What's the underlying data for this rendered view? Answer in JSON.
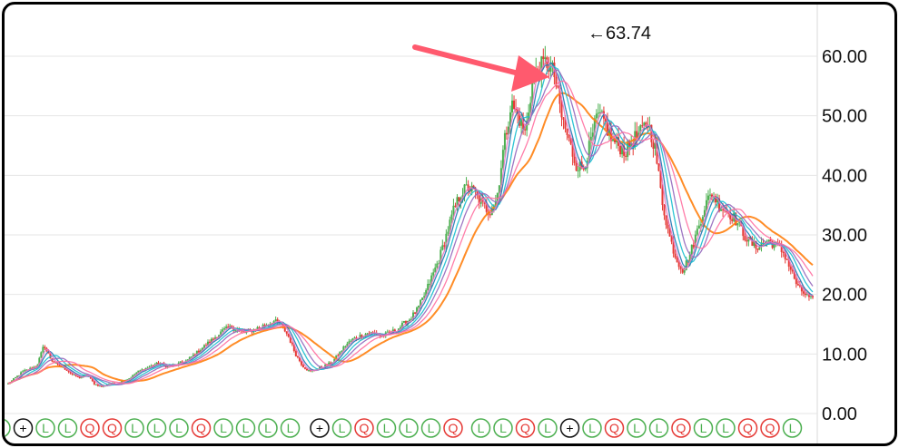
{
  "chart_data": {
    "type": "candlestick",
    "title": "",
    "xlabel": "",
    "ylabel": "",
    "ylim": [
      0,
      67
    ],
    "y_ticks": [
      "0.00",
      "10.00",
      "20.00",
      "30.00",
      "40.00",
      "50.00",
      "60.00"
    ],
    "y_axis_position": "right",
    "grid": true,
    "peak_label": "63.74",
    "peak_arrow_glyph": "←",
    "price_path": [
      5,
      6,
      7,
      7.5,
      8,
      11.5,
      9,
      8,
      7.5,
      6.5,
      6,
      6.5,
      5,
      4.5,
      5,
      5,
      5.5,
      6,
      7,
      7.5,
      8,
      8.5,
      8,
      8,
      8.5,
      9,
      10,
      11,
      12,
      13,
      14,
      14.5,
      14,
      13.5,
      14,
      14.5,
      15,
      15.5,
      15,
      13,
      10,
      8,
      7,
      7.5,
      8,
      8.5,
      10,
      11.5,
      12.5,
      13,
      13.5,
      13.5,
      13,
      13.5,
      14,
      15,
      16,
      17.5,
      20,
      23,
      26,
      30,
      34,
      37,
      38,
      37,
      35,
      34,
      36,
      45,
      52,
      50,
      47,
      56,
      58,
      59,
      57,
      50,
      46,
      42,
      41,
      45,
      50,
      49,
      46,
      45,
      44,
      46,
      47,
      49,
      45,
      36,
      30,
      26,
      24,
      27,
      31,
      35,
      37,
      35,
      34,
      33,
      31,
      29,
      28,
      28.5,
      29,
      28,
      27,
      24,
      21,
      20,
      19
    ],
    "ma_colors": [
      "#ff7f0e",
      "#1f77b4",
      "#17becf",
      "#9467bd",
      "#e377c2",
      "#ff6fa0"
    ],
    "up_color": "#4caf50",
    "down_color": "#e53935",
    "annotation_arrow_color": "#ff5a6e",
    "event_markers": [
      "L",
      "+",
      "L",
      "L",
      "Q",
      "Q",
      "L",
      "L",
      "L",
      "Q",
      "L",
      "L",
      "L",
      "L",
      "+",
      "L",
      "Q",
      "L",
      "L",
      "L",
      "Q",
      "L",
      "L",
      "Q",
      "L",
      "+",
      "L",
      "Q",
      "L",
      "L",
      "Q",
      "L",
      "L",
      "Q",
      "Q",
      "L"
    ],
    "event_colors": {
      "L": "#4caf50",
      "Q": "#e53935",
      "+": "#111111"
    }
  }
}
